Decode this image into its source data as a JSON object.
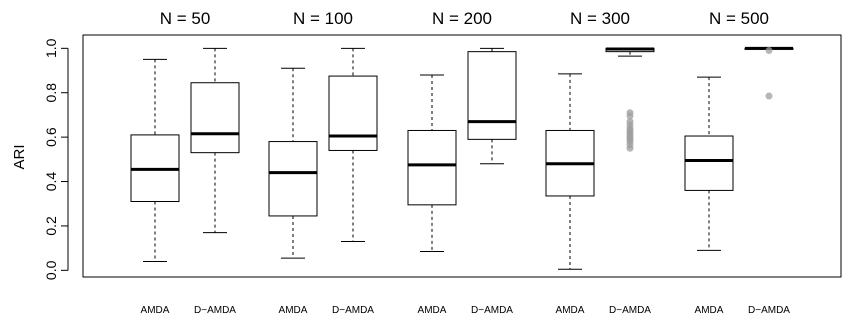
{
  "chart_data": {
    "type": "box",
    "ylabel": "ARI",
    "ylim": [
      -0.03,
      1.06
    ],
    "yticks": [
      "0.0",
      "0.2",
      "0.4",
      "0.6",
      "0.8",
      "1.0"
    ],
    "box_fill": "#ffffff",
    "outlier_color": "#9e9e9e",
    "groups": [
      {
        "title": "N = 50",
        "boxes": [
          {
            "label": "AMDA",
            "min": 0.04,
            "q1": 0.31,
            "median": 0.455,
            "q3": 0.61,
            "max": 0.95,
            "outliers": []
          },
          {
            "label": "D−AMDA",
            "min": 0.17,
            "q1": 0.53,
            "median": 0.615,
            "q3": 0.845,
            "max": 1.0,
            "outliers": []
          }
        ]
      },
      {
        "title": "N = 100",
        "boxes": [
          {
            "label": "AMDA",
            "min": 0.055,
            "q1": 0.245,
            "median": 0.44,
            "q3": 0.58,
            "max": 0.91,
            "outliers": []
          },
          {
            "label": "D−AMDA",
            "min": 0.13,
            "q1": 0.54,
            "median": 0.605,
            "q3": 0.875,
            "max": 1.0,
            "outliers": []
          }
        ]
      },
      {
        "title": "N = 200",
        "boxes": [
          {
            "label": "AMDA",
            "min": 0.085,
            "q1": 0.295,
            "median": 0.475,
            "q3": 0.63,
            "max": 0.88,
            "outliers": []
          },
          {
            "label": "D−AMDA",
            "min": 0.48,
            "q1": 0.59,
            "median": 0.67,
            "q3": 0.985,
            "max": 1.0,
            "outliers": []
          }
        ]
      },
      {
        "title": "N = 300",
        "boxes": [
          {
            "label": "AMDA",
            "min": 0.005,
            "q1": 0.335,
            "median": 0.48,
            "q3": 0.63,
            "max": 0.885,
            "outliers": []
          },
          {
            "label": "D−AMDA",
            "min": 0.965,
            "q1": 0.985,
            "median": 0.997,
            "q3": 1.0,
            "max": 1.0,
            "outliers": [
              0.71,
              0.695,
              0.67,
              0.655,
              0.64,
              0.63,
              0.62,
              0.61,
              0.6,
              0.59,
              0.58,
              0.565,
              0.55
            ]
          }
        ]
      },
      {
        "title": "N = 500",
        "boxes": [
          {
            "label": "AMDA",
            "min": 0.09,
            "q1": 0.36,
            "median": 0.495,
            "q3": 0.605,
            "max": 0.87,
            "outliers": []
          },
          {
            "label": "D−AMDA",
            "min": 1.0,
            "q1": 1.0,
            "median": 1.0,
            "q3": 1.0,
            "max": 1.0,
            "outliers": [
              0.99,
              0.785
            ]
          }
        ]
      }
    ]
  }
}
